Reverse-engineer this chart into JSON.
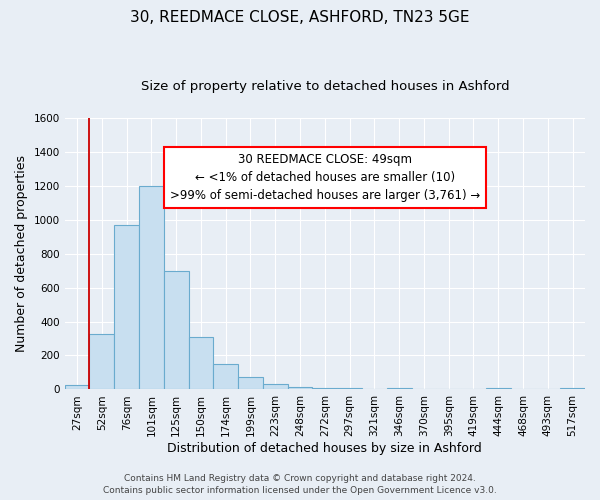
{
  "title": "30, REEDMACE CLOSE, ASHFORD, TN23 5GE",
  "subtitle": "Size of property relative to detached houses in Ashford",
  "xlabel": "Distribution of detached houses by size in Ashford",
  "ylabel": "Number of detached properties",
  "bar_labels": [
    "27sqm",
    "52sqm",
    "76sqm",
    "101sqm",
    "125sqm",
    "150sqm",
    "174sqm",
    "199sqm",
    "223sqm",
    "248sqm",
    "272sqm",
    "297sqm",
    "321sqm",
    "346sqm",
    "370sqm",
    "395sqm",
    "419sqm",
    "444sqm",
    "468sqm",
    "493sqm",
    "517sqm"
  ],
  "bar_values": [
    25,
    325,
    970,
    1200,
    700,
    310,
    150,
    75,
    30,
    15,
    10,
    10,
    0,
    10,
    0,
    0,
    0,
    10,
    0,
    0,
    10
  ],
  "bar_color": "#c8dff0",
  "bar_edge_color": "#6aabce",
  "background_color": "#e8eef5",
  "plot_bg_color": "#e8eef5",
  "grid_color": "#ffffff",
  "ylim": [
    0,
    1600
  ],
  "yticks": [
    0,
    200,
    400,
    600,
    800,
    1000,
    1200,
    1400,
    1600
  ],
  "annotation_title": "30 REEDMACE CLOSE: 49sqm",
  "annotation_line1": "← <1% of detached houses are smaller (10)",
  "annotation_line2": ">99% of semi-detached houses are larger (3,761) →",
  "redline_x": 0.5,
  "footer_line1": "Contains HM Land Registry data © Crown copyright and database right 2024.",
  "footer_line2": "Contains public sector information licensed under the Open Government Licence v3.0.",
  "title_fontsize": 11,
  "subtitle_fontsize": 9.5,
  "axis_label_fontsize": 9,
  "tick_fontsize": 7.5,
  "footer_fontsize": 6.5,
  "annotation_fontsize": 8.5
}
